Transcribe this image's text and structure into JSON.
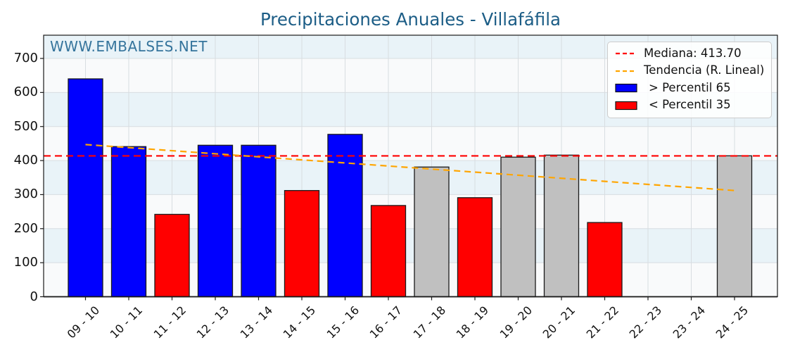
{
  "title": "Precipitaciones Anuales - Villafáfila",
  "watermark": "WWW.EMBALSES.NET",
  "colors": {
    "title": "#1c5d86",
    "watermark": "#35749c",
    "above": "#0000ff",
    "below": "#ff0000",
    "mid": "#c0c0c0",
    "median_line": "#ff0000",
    "trend_line": "#ffa500",
    "band_blue": "#e9f3f8",
    "band_white": "#f9fafb",
    "grid": "#d8dde1",
    "edge": "#1a1a1a"
  },
  "chart_data": {
    "type": "bar",
    "title": "Precipitaciones Anuales - Villafáfila",
    "xlabel": "",
    "ylabel": "",
    "ylim": [
      0,
      768
    ],
    "yticks": [
      0,
      100,
      200,
      300,
      400,
      500,
      600,
      700
    ],
    "grid": true,
    "categories": [
      "09 - 10",
      "10 - 11",
      "11 - 12",
      "12 - 13",
      "13 - 14",
      "14 - 15",
      "15 - 16",
      "16 - 17",
      "17 - 18",
      "18 - 19",
      "19 - 20",
      "20 - 21",
      "21 - 22",
      "22 - 23",
      "23 - 24",
      "24 - 25"
    ],
    "values": [
      640,
      441,
      242,
      445,
      445,
      312,
      477,
      268,
      381,
      291,
      410,
      416,
      218,
      null,
      null,
      414
    ],
    "bar_classes": [
      "above",
      "above",
      "below",
      "above",
      "above",
      "below",
      "above",
      "below",
      "mid",
      "below",
      "mid",
      "mid",
      "below",
      "none",
      "none",
      "mid"
    ],
    "median": 413.7,
    "trend": {
      "start_value": 447,
      "end_value": 312
    },
    "legend_position": "upper right",
    "legend": [
      {
        "type": "dashed-line",
        "color": "#ff0000",
        "label": "Mediana: 413.70"
      },
      {
        "type": "dashed-line",
        "color": "#ffa500",
        "label": "Tendencia (R. Lineal)"
      },
      {
        "type": "patch",
        "color": "#0000ff",
        "label": "> Percentil 65"
      },
      {
        "type": "patch",
        "color": "#ff0000",
        "label": "< Percentil 35"
      }
    ]
  }
}
